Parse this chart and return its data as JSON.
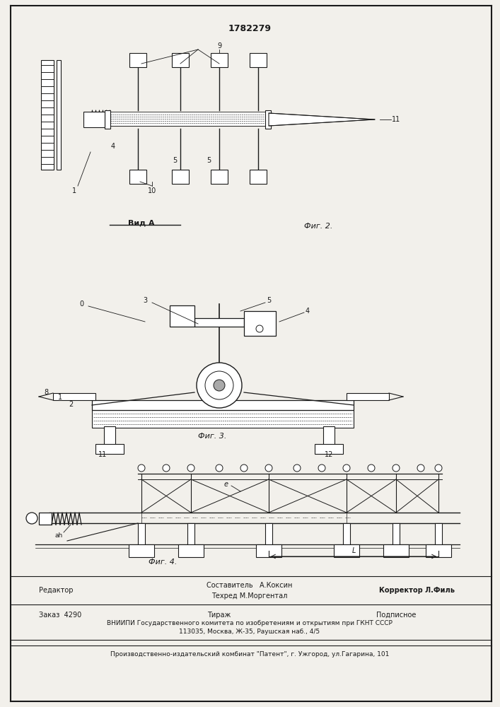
{
  "patent_number": "1782279",
  "background_color": "#f2f0eb",
  "line_color": "#1a1a1a",
  "fig2_caption": "Фиг. 2.",
  "vid_a_label": "Вид А",
  "fig3_caption": "Фиг. 3.",
  "fig4_caption": "Фиг. 4.",
  "footer_line1_left": "Редактор",
  "footer_line1_center1": "Составитель   А.Коксин",
  "footer_line1_center2": "Техред М.Моргентал",
  "footer_line1_right": "Корректор Л.Филь",
  "footer_line2_left": "Заказ  4290",
  "footer_line2_center": "Тираж",
  "footer_line2_right": "Подписное",
  "footer_line3": "ВНИИПИ Государственного комитета по изобретениям и открытиям при ГКНТ СССР",
  "footer_line4": "113035, Москва, Ж-35, Раушская наб., 4/5",
  "footer_line5": "Производственно-издательский комбинат \"Патент\", г. Ужгород, ул.Гагарина, 101"
}
